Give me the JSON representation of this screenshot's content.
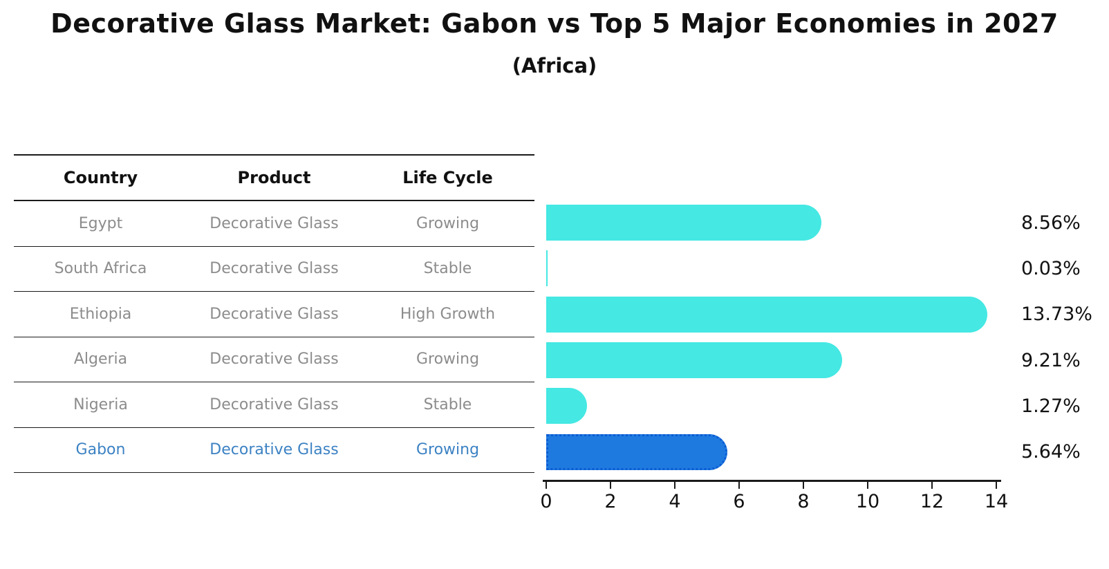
{
  "title": "Decorative Glass Market: Gabon vs Top 5 Major Economies in 2027",
  "subtitle": "(Africa)",
  "table": {
    "headers": [
      "Country",
      "Product",
      "Life Cycle"
    ],
    "rows": [
      {
        "country": "Egypt",
        "product": "Decorative Glass",
        "life_cycle": "Growing",
        "highlight": false
      },
      {
        "country": "South Africa",
        "product": "Decorative Glass",
        "life_cycle": "Stable",
        "highlight": false
      },
      {
        "country": "Ethiopia",
        "product": "Decorative Glass",
        "life_cycle": "High Growth",
        "highlight": false
      },
      {
        "country": "Algeria",
        "product": "Decorative Glass",
        "life_cycle": "Growing",
        "highlight": false
      },
      {
        "country": "Nigeria",
        "product": "Decorative Glass",
        "life_cycle": "Stable",
        "highlight": true
      }
    ]
  },
  "chart_data": {
    "type": "bar",
    "orientation": "horizontal",
    "categories": [
      "Egypt",
      "South Africa",
      "Ethiopia",
      "Algeria",
      "Nigeria",
      "Gabon"
    ],
    "values": [
      8.56,
      0.03,
      13.73,
      9.21,
      1.27,
      5.64
    ],
    "value_labels": [
      "8.56%",
      "0.03%",
      "13.73%",
      "9.21%",
      "1.27%",
      "5.64%"
    ],
    "title": "Decorative Glass Market: Gabon vs Top 5 Major Economies in 2027",
    "subtitle": "(Africa)",
    "xlabel": "",
    "ylabel": "",
    "xlim": [
      0,
      14
    ],
    "x_ticks": [
      0,
      2,
      4,
      6,
      8,
      10,
      12,
      14
    ],
    "grid": false,
    "legend": null,
    "bar_color": "#45E8E3",
    "highlight_bar_color": "#1F7AE0",
    "highlight_bar_border_color": "#0C5CD4",
    "highlight_index": 5,
    "highlight_text_color": "#3C82C3",
    "row_text_color": "#8C8C8C",
    "axis_color": "#1A1A1A"
  }
}
